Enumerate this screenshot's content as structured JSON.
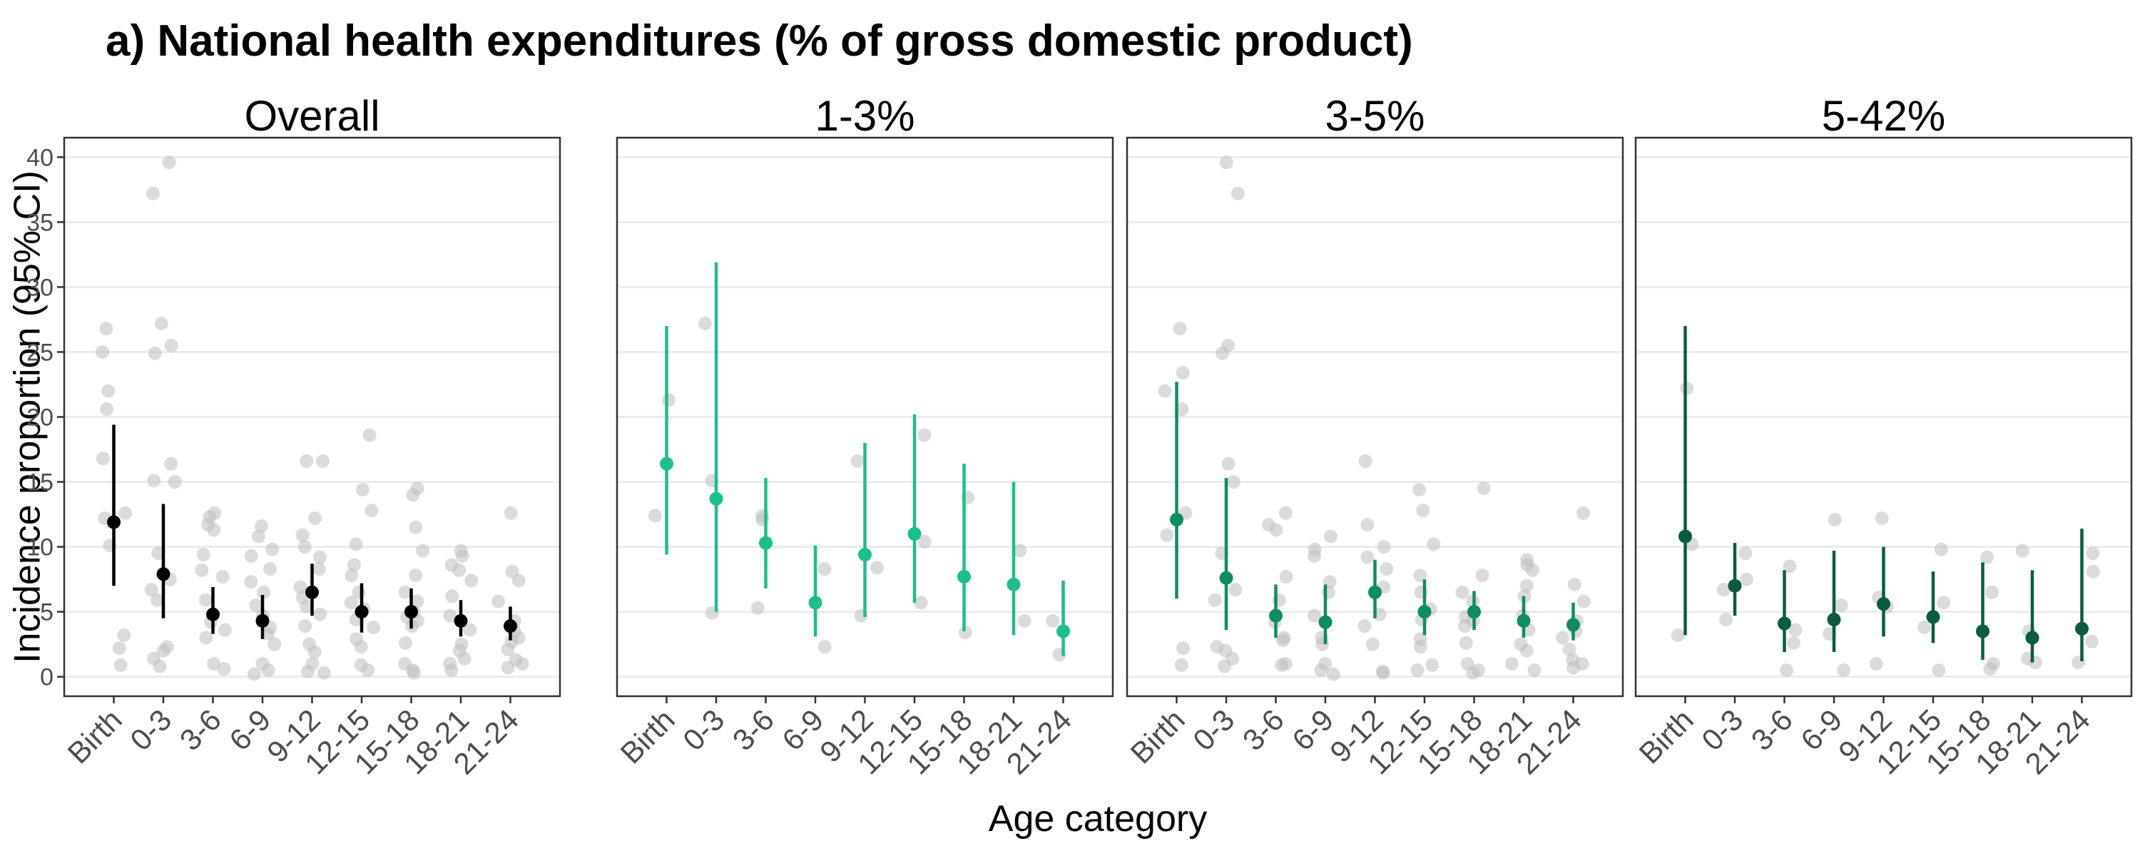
{
  "chart_data": {
    "type": "scatter",
    "title": "a) National health expenditures (% of gross domestic product)",
    "xlabel": "Age category",
    "ylabel": "Incidence proportion (95% CI)",
    "ylim": [
      -1.5,
      41.5
    ],
    "yticks": [
      0,
      5,
      10,
      15,
      20,
      25,
      30,
      35,
      40
    ],
    "categories": [
      "Birth",
      "0-3",
      "3-6",
      "6-9",
      "9-12",
      "12-15",
      "15-18",
      "18-21",
      "21-24"
    ],
    "grid": true,
    "raw_point_color": "#bdbdbd",
    "panels": [
      {
        "name": "Overall",
        "color": "#000000",
        "estimates": [
          {
            "category": "Birth",
            "value": 11.9,
            "lower": 7.0,
            "upper": 19.4
          },
          {
            "category": "0-3",
            "value": 7.9,
            "lower": 4.5,
            "upper": 13.3
          },
          {
            "category": "3-6",
            "value": 4.8,
            "lower": 3.3,
            "upper": 6.9
          },
          {
            "category": "6-9",
            "value": 4.3,
            "lower": 2.9,
            "upper": 6.3
          },
          {
            "category": "9-12",
            "value": 6.5,
            "lower": 4.7,
            "upper": 8.7
          },
          {
            "category": "12-15",
            "value": 5.0,
            "lower": 3.4,
            "upper": 7.2
          },
          {
            "category": "15-18",
            "value": 5.0,
            "lower": 3.7,
            "upper": 6.8
          },
          {
            "category": "18-21",
            "value": 4.3,
            "lower": 3.1,
            "upper": 5.9
          },
          {
            "category": "21-24",
            "value": 3.9,
            "lower": 2.8,
            "upper": 5.4
          }
        ],
        "raw": [
          {
            "category": "Birth",
            "values": [
              26.8,
              25.0,
              22.0,
              20.6,
              16.8,
              12.6,
              12.2,
              10.1,
              3.2,
              2.2,
              0.9
            ]
          },
          {
            "category": "0-3",
            "values": [
              39.6,
              37.2,
              27.2,
              25.5,
              24.9,
              16.4,
              15.1,
              15.0,
              9.5,
              7.5,
              6.7,
              5.9,
              2.3,
              2.0,
              1.4,
              0.8
            ]
          },
          {
            "category": "3-6",
            "values": [
              12.6,
              12.3,
              11.7,
              11.3,
              9.4,
              8.2,
              7.7,
              5.9,
              4.2,
              3.6,
              3.0,
              1.0,
              0.6
            ]
          },
          {
            "category": "6-9",
            "values": [
              11.6,
              10.8,
              9.8,
              9.3,
              8.3,
              7.3,
              6.5,
              5.5,
              4.7,
              3.8,
              3.3,
              2.5,
              1.0,
              0.5,
              0.2
            ]
          },
          {
            "category": "9-12",
            "values": [
              16.6,
              16.6,
              12.2,
              10.9,
              10.0,
              9.2,
              8.3,
              6.9,
              6.1,
              5.4,
              4.8,
              3.9,
              2.5,
              1.9,
              1.0,
              0.4,
              0.3
            ]
          },
          {
            "category": "12-15",
            "values": [
              18.6,
              14.4,
              12.8,
              10.2,
              8.6,
              7.8,
              6.5,
              5.7,
              5.2,
              4.4,
              3.8,
              2.9,
              2.3,
              0.9,
              0.5
            ]
          },
          {
            "category": "15-18",
            "values": [
              14.5,
              14.0,
              11.5,
              9.7,
              7.8,
              6.5,
              5.8,
              5.0,
              4.6,
              4.3,
              3.9,
              2.6,
              1.0,
              0.5,
              0.3
            ]
          },
          {
            "category": "18-21",
            "values": [
              9.7,
              9.3,
              8.6,
              8.2,
              7.4,
              6.2,
              4.7,
              3.6,
              2.5,
              2.0,
              1.4,
              1.0,
              0.5
            ]
          },
          {
            "category": "21-24",
            "values": [
              12.6,
              8.1,
              7.4,
              5.8,
              4.3,
              3.5,
              3.0,
              2.7,
              2.1,
              1.3,
              1.0,
              0.7
            ]
          }
        ]
      },
      {
        "name": "1-3%",
        "color": "#1abf8c",
        "estimates": [
          {
            "category": "Birth",
            "value": 16.4,
            "lower": 9.4,
            "upper": 27.0
          },
          {
            "category": "0-3",
            "value": 13.7,
            "lower": 5.0,
            "upper": 31.9
          },
          {
            "category": "3-6",
            "value": 10.3,
            "lower": 6.8,
            "upper": 15.3
          },
          {
            "category": "6-9",
            "value": 5.7,
            "lower": 3.1,
            "upper": 10.1
          },
          {
            "category": "9-12",
            "value": 9.4,
            "lower": 4.6,
            "upper": 18.0
          },
          {
            "category": "12-15",
            "value": 11.0,
            "lower": 5.7,
            "upper": 20.2
          },
          {
            "category": "15-18",
            "value": 7.7,
            "lower": 3.5,
            "upper": 16.4
          },
          {
            "category": "18-21",
            "value": 7.1,
            "lower": 3.2,
            "upper": 15.0
          },
          {
            "category": "21-24",
            "value": 3.5,
            "lower": 1.6,
            "upper": 7.4
          }
        ],
        "raw": [
          {
            "category": "Birth",
            "values": [
              21.3,
              12.4
            ]
          },
          {
            "category": "0-3",
            "values": [
              27.2,
              15.1,
              4.9
            ]
          },
          {
            "category": "3-6",
            "values": [
              12.4,
              12.1,
              5.3
            ]
          },
          {
            "category": "6-9",
            "values": [
              8.3,
              2.3
            ]
          },
          {
            "category": "9-12",
            "values": [
              16.6,
              8.4,
              4.7
            ]
          },
          {
            "category": "12-15",
            "values": [
              18.6,
              10.4,
              5.7
            ]
          },
          {
            "category": "15-18",
            "values": [
              13.8,
              3.4
            ]
          },
          {
            "category": "18-21",
            "values": [
              9.7,
              4.3
            ]
          },
          {
            "category": "21-24",
            "values": [
              4.3,
              1.7
            ]
          }
        ]
      },
      {
        "name": "3-5%",
        "color": "#0e8c64",
        "estimates": [
          {
            "category": "Birth",
            "value": 12.1,
            "lower": 6.0,
            "upper": 22.7
          },
          {
            "category": "0-3",
            "value": 7.6,
            "lower": 3.6,
            "upper": 15.3
          },
          {
            "category": "3-6",
            "value": 4.7,
            "lower": 3.0,
            "upper": 7.1
          },
          {
            "category": "6-9",
            "value": 4.2,
            "lower": 2.5,
            "upper": 7.1
          },
          {
            "category": "9-12",
            "value": 6.5,
            "lower": 4.5,
            "upper": 9.0
          },
          {
            "category": "12-15",
            "value": 5.0,
            "lower": 3.2,
            "upper": 7.5
          },
          {
            "category": "15-18",
            "value": 5.0,
            "lower": 3.6,
            "upper": 6.6
          },
          {
            "category": "18-21",
            "value": 4.3,
            "lower": 3.0,
            "upper": 6.2
          },
          {
            "category": "21-24",
            "value": 4.0,
            "lower": 2.8,
            "upper": 5.7
          }
        ],
        "raw": [
          {
            "category": "Birth",
            "values": [
              26.8,
              23.4,
              22.0,
              20.6,
              12.6,
              10.9,
              2.2,
              0.9
            ]
          },
          {
            "category": "0-3",
            "values": [
              39.6,
              37.2,
              25.5,
              24.9,
              16.4,
              15.0,
              9.5,
              6.7,
              5.9,
              2.3,
              2.0,
              1.4,
              0.8
            ]
          },
          {
            "category": "3-6",
            "values": [
              12.6,
              11.7,
              11.3,
              7.7,
              5.9,
              4.2,
              3.0,
              2.8,
              1.0,
              0.9
            ]
          },
          {
            "category": "6-9",
            "values": [
              10.8,
              9.8,
              9.3,
              7.3,
              6.5,
              4.7,
              3.0,
              2.5,
              1.0,
              0.5,
              0.2
            ]
          },
          {
            "category": "9-12",
            "values": [
              16.6,
              11.7,
              10.0,
              9.2,
              8.3,
              6.9,
              4.8,
              3.9,
              2.5,
              0.4,
              0.3
            ]
          },
          {
            "category": "12-15",
            "values": [
              14.4,
              12.8,
              10.2,
              7.8,
              6.5,
              5.2,
              4.4,
              2.9,
              2.3,
              0.9,
              0.5
            ]
          },
          {
            "category": "15-18",
            "values": [
              14.5,
              7.8,
              6.5,
              5.8,
              4.6,
              4.3,
              3.9,
              2.6,
              1.0,
              0.5,
              0.3
            ]
          },
          {
            "category": "18-21",
            "values": [
              9.0,
              8.6,
              8.2,
              7.0,
              6.2,
              4.7,
              3.6,
              2.5,
              2.0,
              1.0,
              0.5
            ]
          },
          {
            "category": "21-24",
            "values": [
              12.6,
              7.1,
              5.8,
              4.3,
              3.5,
              3.0,
              2.1,
              1.3,
              1.0,
              0.7
            ]
          }
        ]
      },
      {
        "name": "5-42%",
        "color": "#0a5c40",
        "estimates": [
          {
            "category": "Birth",
            "value": 10.8,
            "lower": 3.2,
            "upper": 27.0
          },
          {
            "category": "0-3",
            "value": 7.0,
            "lower": 4.7,
            "upper": 10.3
          },
          {
            "category": "3-6",
            "value": 4.1,
            "lower": 1.9,
            "upper": 8.2
          },
          {
            "category": "6-9",
            "value": 4.4,
            "lower": 1.9,
            "upper": 9.7
          },
          {
            "category": "9-12",
            "value": 5.6,
            "lower": 3.1,
            "upper": 10.0
          },
          {
            "category": "12-15",
            "value": 4.6,
            "lower": 2.6,
            "upper": 8.1
          },
          {
            "category": "15-18",
            "value": 3.5,
            "lower": 1.3,
            "upper": 8.8
          },
          {
            "category": "18-21",
            "value": 3.0,
            "lower": 1.1,
            "upper": 8.2
          },
          {
            "category": "21-24",
            "value": 3.7,
            "lower": 1.2,
            "upper": 11.4
          }
        ],
        "raw": [
          {
            "category": "Birth",
            "values": [
              22.2,
              10.2,
              3.2
            ]
          },
          {
            "category": "0-3",
            "values": [
              9.5,
              7.5,
              6.7,
              4.4
            ]
          },
          {
            "category": "3-6",
            "values": [
              8.5,
              3.6,
              2.6,
              0.5
            ]
          },
          {
            "category": "6-9",
            "values": [
              12.1,
              5.5,
              3.3,
              0.5
            ]
          },
          {
            "category": "9-12",
            "values": [
              12.2,
              6.1,
              5.4,
              1.0
            ]
          },
          {
            "category": "12-15",
            "values": [
              9.8,
              5.7,
              3.8,
              0.5
            ]
          },
          {
            "category": "15-18",
            "values": [
              9.2,
              6.5,
              1.0,
              0.6
            ]
          },
          {
            "category": "18-21",
            "values": [
              9.7,
              3.5,
              1.4,
              1.1
            ]
          },
          {
            "category": "21-24",
            "values": [
              9.5,
              8.1,
              2.7,
              1.1
            ]
          }
        ]
      }
    ]
  }
}
